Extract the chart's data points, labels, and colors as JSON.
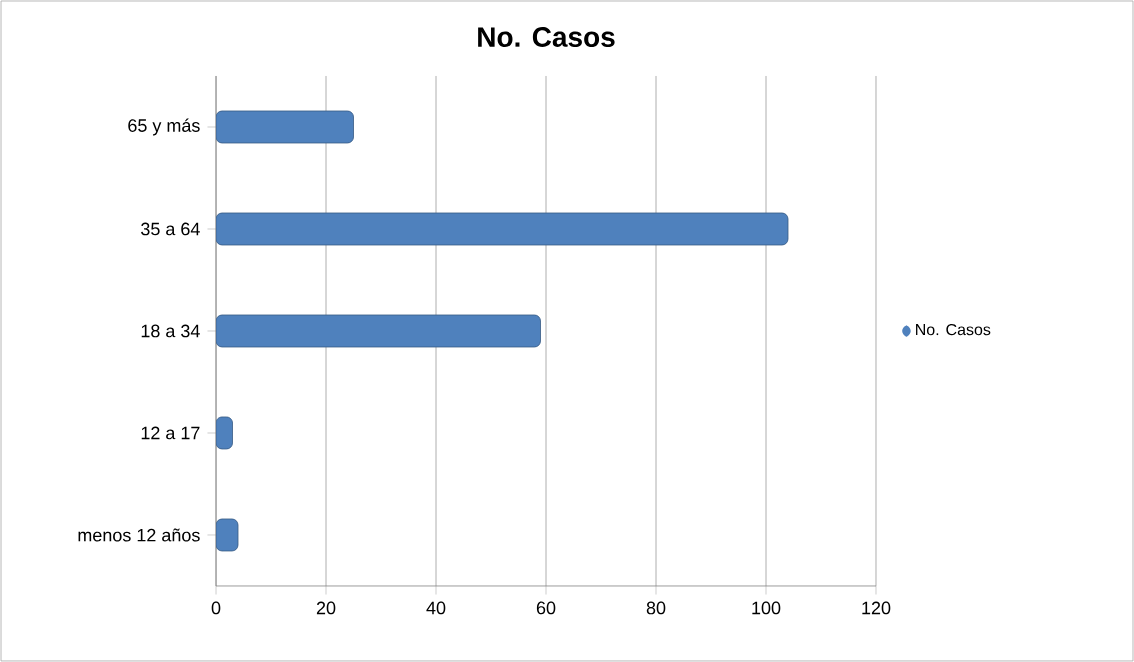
{
  "chart_data": {
    "type": "bar",
    "orientation": "horizontal",
    "title": "No. Casos",
    "categories": [
      "65 y más",
      "35 a 64",
      "18 a 34",
      "12 a 17",
      "menos 12 años"
    ],
    "series": [
      {
        "name": "No. Casos",
        "color": "#4f81bd",
        "values": [
          25,
          104,
          59,
          3,
          4
        ]
      }
    ],
    "xlim": [
      0,
      120
    ],
    "xticks": [
      0,
      20,
      40,
      60,
      80,
      100,
      120
    ],
    "grid": "x",
    "legend": "right"
  }
}
